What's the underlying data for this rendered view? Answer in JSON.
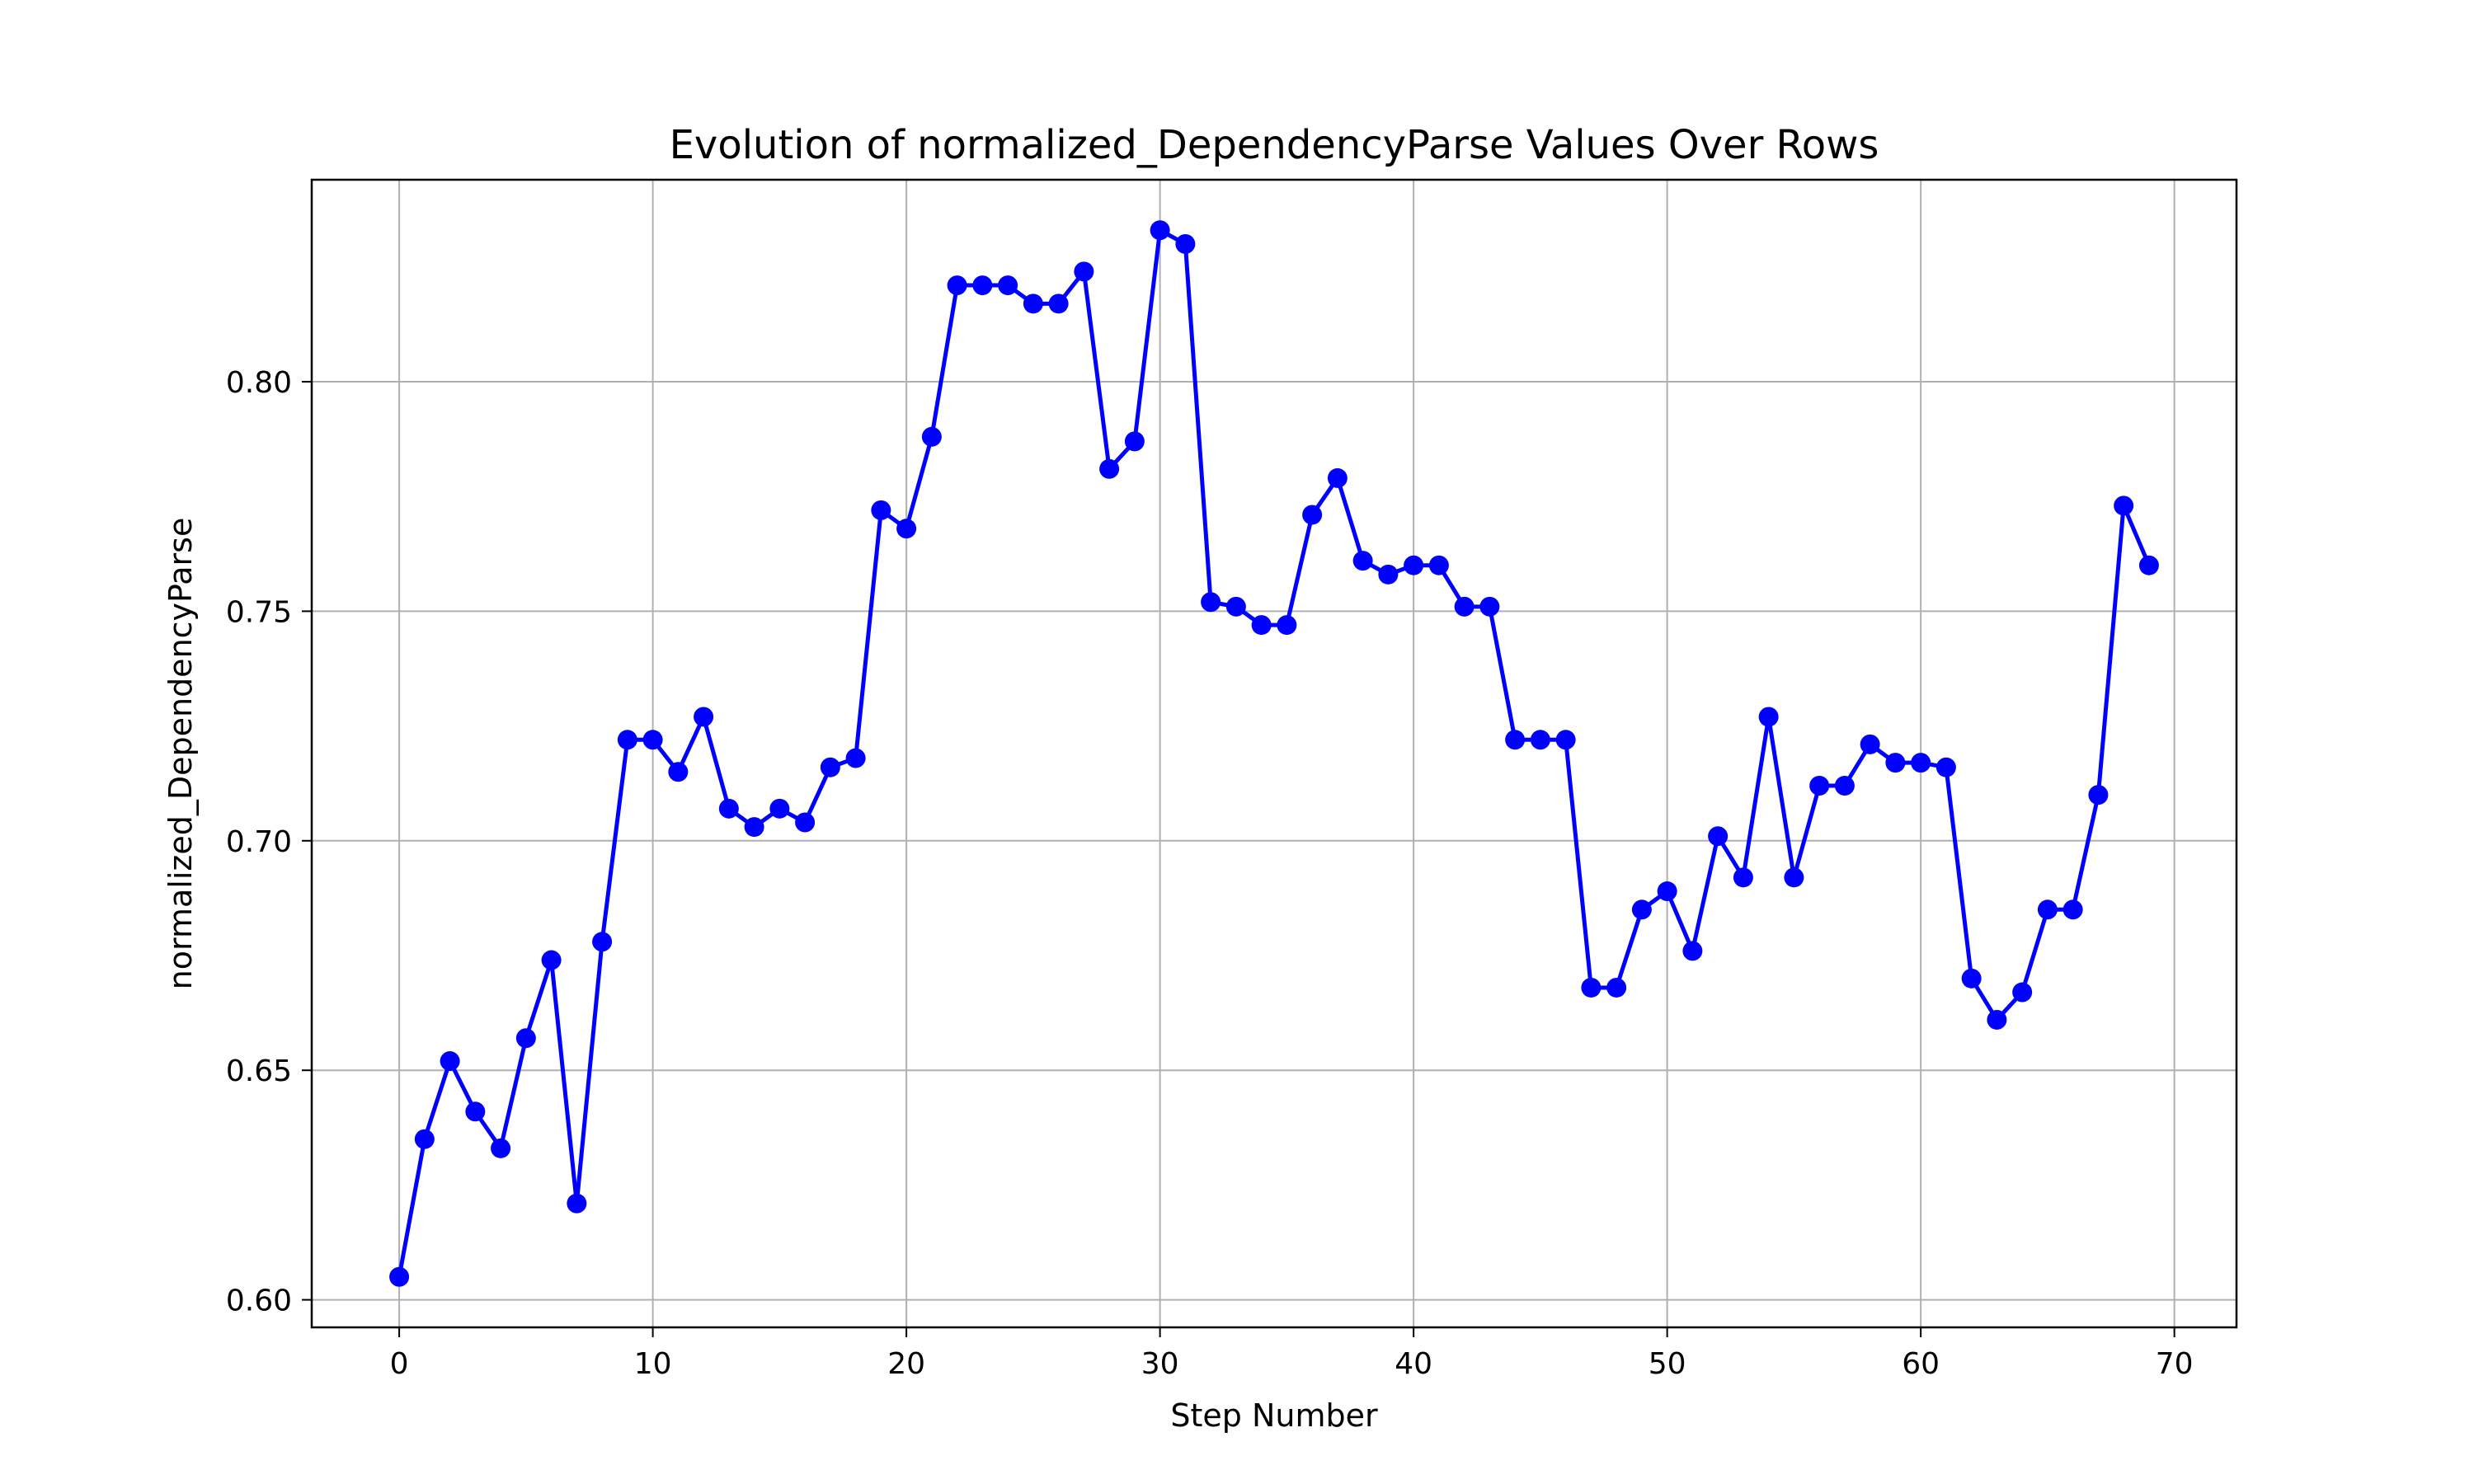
{
  "chart_data": {
    "type": "line",
    "title": "Evolution of normalized_DependencyParse Values Over Rows",
    "xlabel": "Step Number",
    "ylabel": "normalized_DependencyParse",
    "xlim": [
      -3.45,
      72.45
    ],
    "ylim": [
      0.594,
      0.844
    ],
    "x_ticks": [
      0,
      10,
      20,
      30,
      40,
      50,
      60,
      70
    ],
    "y_ticks": [
      0.6,
      0.65,
      0.7,
      0.75,
      0.8
    ],
    "x_tick_labels": [
      "0",
      "10",
      "20",
      "30",
      "40",
      "50",
      "60",
      "70"
    ],
    "y_tick_labels": [
      "0.60",
      "0.65",
      "0.70",
      "0.75",
      "0.80"
    ],
    "grid": true,
    "line_color": "#0000ff",
    "marker": "circle",
    "series": [
      {
        "x": [
          0,
          1,
          2,
          3,
          4,
          5,
          6,
          7,
          8,
          9,
          10,
          11,
          12,
          13,
          14,
          15,
          16,
          17,
          18,
          19,
          20,
          21,
          22,
          23,
          24,
          25,
          26,
          27,
          28,
          29,
          30,
          31,
          32,
          33,
          34,
          35,
          36,
          37,
          38,
          39,
          40,
          41,
          42,
          43,
          44,
          45,
          46,
          47,
          48,
          49,
          50,
          51,
          52,
          53,
          54,
          55,
          56,
          57,
          58,
          59,
          60,
          61,
          62,
          63,
          64,
          65,
          66,
          67,
          68,
          69
        ],
        "values": [
          0.605,
          0.635,
          0.652,
          0.641,
          0.633,
          0.657,
          0.674,
          0.621,
          0.678,
          0.722,
          0.722,
          0.715,
          0.727,
          0.707,
          0.703,
          0.707,
          0.704,
          0.716,
          0.718,
          0.772,
          0.768,
          0.788,
          0.821,
          0.821,
          0.821,
          0.817,
          0.817,
          0.824,
          0.781,
          0.787,
          0.833,
          0.83,
          0.752,
          0.751,
          0.747,
          0.747,
          0.771,
          0.779,
          0.761,
          0.758,
          0.76,
          0.76,
          0.751,
          0.751,
          0.722,
          0.722,
          0.722,
          0.668,
          0.668,
          0.685,
          0.689,
          0.676,
          0.701,
          0.692,
          0.727,
          0.692,
          0.712,
          0.712,
          0.721,
          0.717,
          0.717,
          0.716,
          0.67,
          0.661,
          0.667,
          0.685,
          0.685,
          0.71,
          0.773,
          0.76
        ]
      }
    ]
  }
}
